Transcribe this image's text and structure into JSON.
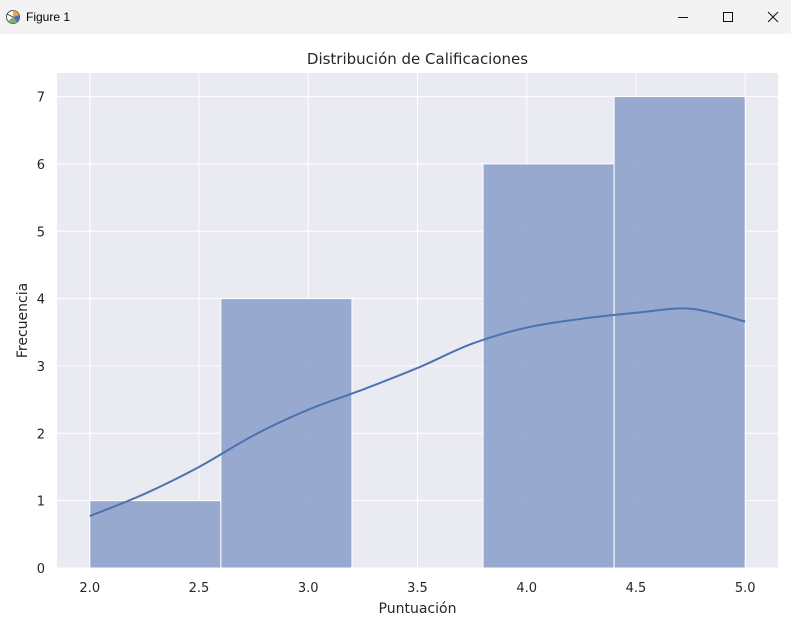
{
  "window": {
    "title": "Figure 1",
    "controls": {
      "minimize_icon": "minimize-icon",
      "maximize_icon": "maximize-icon",
      "close_icon": "close-icon"
    }
  },
  "colors": {
    "titlebar_bg": "#f3f3f3",
    "axes_bg": "#eaeaf2",
    "grid": "#ffffff",
    "bar_fill": "#8fa3cc",
    "bar_edge": "#ffffff",
    "kde_line": "#4c72b0",
    "text": "#262626"
  },
  "chart_data": {
    "type": "bar",
    "title": "Distribución de Calificaciones",
    "xlabel": "Puntuación",
    "ylabel": "Frecuencia",
    "xlim": [
      1.85,
      5.15
    ],
    "ylim": [
      0,
      7.35
    ],
    "xticks": [
      "2.0",
      "2.5",
      "3.0",
      "3.5",
      "4.0",
      "4.5",
      "5.0"
    ],
    "xtick_values": [
      2.0,
      2.5,
      3.0,
      3.5,
      4.0,
      4.5,
      5.0
    ],
    "yticks": [
      "0",
      "1",
      "2",
      "3",
      "4",
      "5",
      "6",
      "7"
    ],
    "ytick_values": [
      0,
      1,
      2,
      3,
      4,
      5,
      6,
      7
    ],
    "grid": true,
    "bins": [
      {
        "start": 2.0,
        "end": 2.6,
        "count": 1
      },
      {
        "start": 2.6,
        "end": 3.2,
        "count": 4
      },
      {
        "start": 3.2,
        "end": 3.8,
        "count": 0
      },
      {
        "start": 3.8,
        "end": 4.4,
        "count": 6
      },
      {
        "start": 4.4,
        "end": 5.0,
        "count": 7
      }
    ],
    "kde": {
      "x": [
        2.0,
        2.25,
        2.5,
        2.75,
        3.0,
        3.25,
        3.5,
        3.75,
        4.0,
        4.25,
        4.5,
        4.75,
        5.0
      ],
      "y": [
        0.77,
        1.1,
        1.5,
        1.97,
        2.35,
        2.65,
        2.97,
        3.33,
        3.57,
        3.7,
        3.79,
        3.85,
        3.66
      ]
    }
  }
}
